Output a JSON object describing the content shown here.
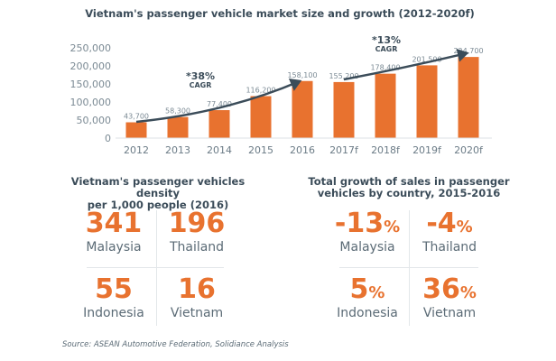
{
  "chart_data": {
    "type": "bar",
    "title": "Vietnam's passenger vehicle market size and growth (2012-2020f)",
    "categories": [
      "2012",
      "2013",
      "2014",
      "2015",
      "2016",
      "2017f",
      "2018f",
      "2019f",
      "2020f"
    ],
    "values": [
      43700,
      58300,
      77400,
      116200,
      158100,
      155200,
      178400,
      201500,
      224700
    ],
    "data_labels": [
      "43,700",
      "58,300",
      "77,400",
      "116,200",
      "158,100",
      "155,200",
      "178,400",
      "201,500",
      "224,700"
    ],
    "yticks": [
      "0",
      "50,000",
      "100,000",
      "150,000",
      "200,000",
      "250,000"
    ],
    "ylim": [
      0,
      250000
    ],
    "grid": false,
    "bar_color": "#e8722f",
    "annotations": [
      {
        "pct": "*38%",
        "label": "CAGR"
      },
      {
        "pct": "*13%",
        "label": "CAGR"
      }
    ]
  },
  "density": {
    "title_line1": "Vietnam's passenger vehicles density",
    "title_line2": "per 1,000 people (2016)",
    "items": [
      {
        "value": "341",
        "country": "Malaysia"
      },
      {
        "value": "196",
        "country": "Thailand"
      },
      {
        "value": "55",
        "country": "Indonesia"
      },
      {
        "value": "16",
        "country": "Vietnam"
      }
    ]
  },
  "growth": {
    "title_line1": "Total growth of sales in passenger",
    "title_line2": "vehicles by country, 2015-2016",
    "pct": "%",
    "items": [
      {
        "value": "-13",
        "country": "Malaysia"
      },
      {
        "value": "-4",
        "country": "Thailand"
      },
      {
        "value": "5",
        "country": "Indonesia"
      },
      {
        "value": "36",
        "country": "Vietnam"
      }
    ]
  },
  "source": "Source: ASEAN Automotive Federation, Solidiance Analysis"
}
